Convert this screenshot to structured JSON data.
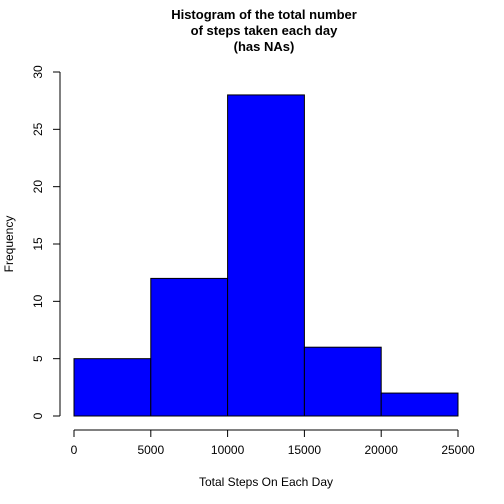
{
  "chart_data": {
    "type": "bar",
    "title_lines": [
      "Histogram of the total number",
      "of steps taken each day",
      "(has NAs)"
    ],
    "xlabel": "Total Steps On Each Day",
    "ylabel": "Frequency",
    "bins": [
      {
        "start": 0,
        "end": 5000,
        "count": 5
      },
      {
        "start": 5000,
        "end": 10000,
        "count": 12
      },
      {
        "start": 10000,
        "end": 15000,
        "count": 28
      },
      {
        "start": 15000,
        "end": 20000,
        "count": 6
      },
      {
        "start": 20000,
        "end": 25000,
        "count": 2
      }
    ],
    "xlim": [
      0,
      25000
    ],
    "ylim": [
      0,
      30
    ],
    "x_ticks": [
      0,
      5000,
      10000,
      15000,
      20000,
      25000
    ],
    "y_ticks": [
      0,
      5,
      10,
      15,
      20,
      25,
      30
    ],
    "bar_color": "#0000ff",
    "bar_border_color": "#000000",
    "grid": false
  }
}
